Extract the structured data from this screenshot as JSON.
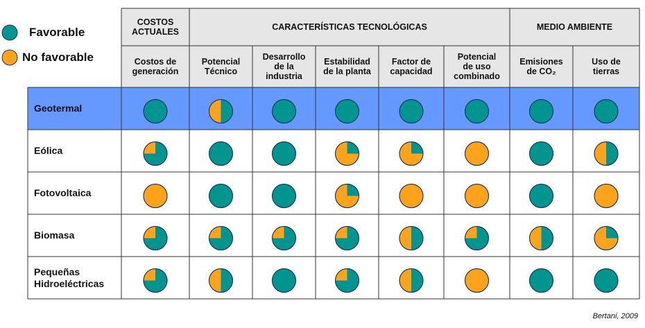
{
  "legend": [
    {
      "label": "Favorable",
      "color": "#00968f"
    },
    {
      "label": "No favorable",
      "color": "#ffa31a"
    }
  ],
  "groups": [
    {
      "label": "COSTOS\nACTUALES",
      "span": 1
    },
    {
      "label": "CARACTERÍSTICAS TECNOLÓGICAS",
      "span": 5
    },
    {
      "label": "MEDIO AMBIENTE",
      "span": 2
    }
  ],
  "columns": [
    "Costos de\ngeneración",
    "Potencial\nTécnico",
    "Desarrollo\nde la\nindustria",
    "Estabilidad\nde la planta",
    "Factor de\ncapacidad",
    "Potencial\nde uso\ncombinado",
    "Emisiones\nde CO₂",
    "Uso de\ntierras"
  ],
  "rows": [
    {
      "label": "Geotermal",
      "highlight": true,
      "values": [
        100,
        50,
        100,
        100,
        100,
        100,
        100,
        100
      ]
    },
    {
      "label": "Eólica",
      "values": [
        75,
        100,
        100,
        25,
        25,
        0,
        100,
        50
      ]
    },
    {
      "label": "Fotovoltaica",
      "values": [
        0,
        100,
        100,
        25,
        0,
        0,
        100,
        0
      ]
    },
    {
      "label": "Biomasa",
      "values": [
        75,
        75,
        75,
        75,
        50,
        75,
        50,
        25
      ]
    },
    {
      "label": "Pequeñas\nHidroeléctricas",
      "values": [
        75,
        50,
        100,
        75,
        50,
        0,
        100,
        100
      ]
    }
  ],
  "source": "Bertani, 2009"
}
